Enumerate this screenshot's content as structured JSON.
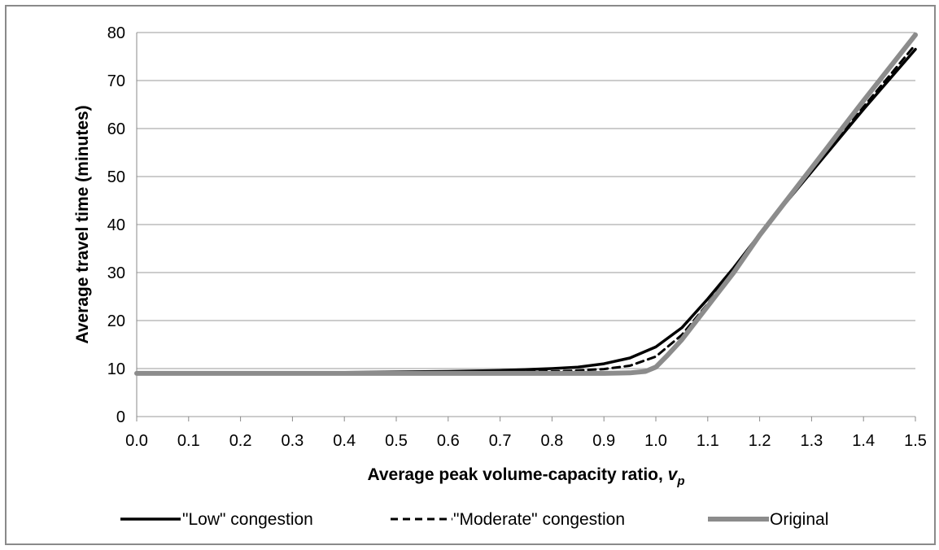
{
  "chart_data": {
    "type": "line",
    "xlabel": "Average peak volume-capacity ratio, ",
    "xlabel_var": "v",
    "xlabel_sub": "p",
    "ylabel": "Average travel time (minutes)",
    "xlim": [
      0.0,
      1.5
    ],
    "ylim": [
      0,
      80
    ],
    "x_ticks": [
      "0.0",
      "0.1",
      "0.2",
      "0.3",
      "0.4",
      "0.5",
      "0.6",
      "0.7",
      "0.8",
      "0.9",
      "1.0",
      "1.1",
      "1.2",
      "1.3",
      "1.4",
      "1.5"
    ],
    "y_ticks": [
      "0",
      "10",
      "20",
      "30",
      "40",
      "50",
      "60",
      "70",
      "80"
    ],
    "grid": "horizontal",
    "legend_position": "bottom",
    "series": [
      {
        "name": "\"Low\" congestion",
        "color": "#000000",
        "style": "solid",
        "x": [
          0.0,
          0.2,
          0.4,
          0.6,
          0.7,
          0.8,
          0.85,
          0.9,
          0.95,
          1.0,
          1.05,
          1.1,
          1.15,
          1.2,
          1.3,
          1.4,
          1.5
        ],
        "y": [
          9.1,
          9.1,
          9.2,
          9.4,
          9.6,
          10.0,
          10.3,
          11.0,
          12.2,
          14.5,
          18.5,
          24.5,
          31.0,
          38.0,
          51.0,
          64.0,
          76.5
        ]
      },
      {
        "name": "\"Moderate\" congestion",
        "color": "#000000",
        "style": "dashed",
        "x": [
          0.0,
          0.2,
          0.4,
          0.6,
          0.7,
          0.8,
          0.85,
          0.9,
          0.95,
          1.0,
          1.05,
          1.1,
          1.15,
          1.2,
          1.3,
          1.4,
          1.5
        ],
        "y": [
          9.0,
          9.0,
          9.1,
          9.2,
          9.3,
          9.4,
          9.6,
          9.9,
          10.6,
          12.5,
          17.0,
          23.5,
          30.5,
          38.0,
          51.0,
          64.5,
          77.5
        ]
      },
      {
        "name": "Original",
        "color": "#8c8c8c",
        "style": "solid-thick",
        "x": [
          0.0,
          0.2,
          0.4,
          0.6,
          0.8,
          0.9,
          0.95,
          0.98,
          1.0,
          1.02,
          1.05,
          1.1,
          1.15,
          1.2,
          1.3,
          1.4,
          1.5
        ],
        "y": [
          9.0,
          9.0,
          9.0,
          9.0,
          9.0,
          9.0,
          9.1,
          9.4,
          10.3,
          12.5,
          16.0,
          23.0,
          30.0,
          37.8,
          51.8,
          65.8,
          79.5
        ]
      }
    ]
  }
}
